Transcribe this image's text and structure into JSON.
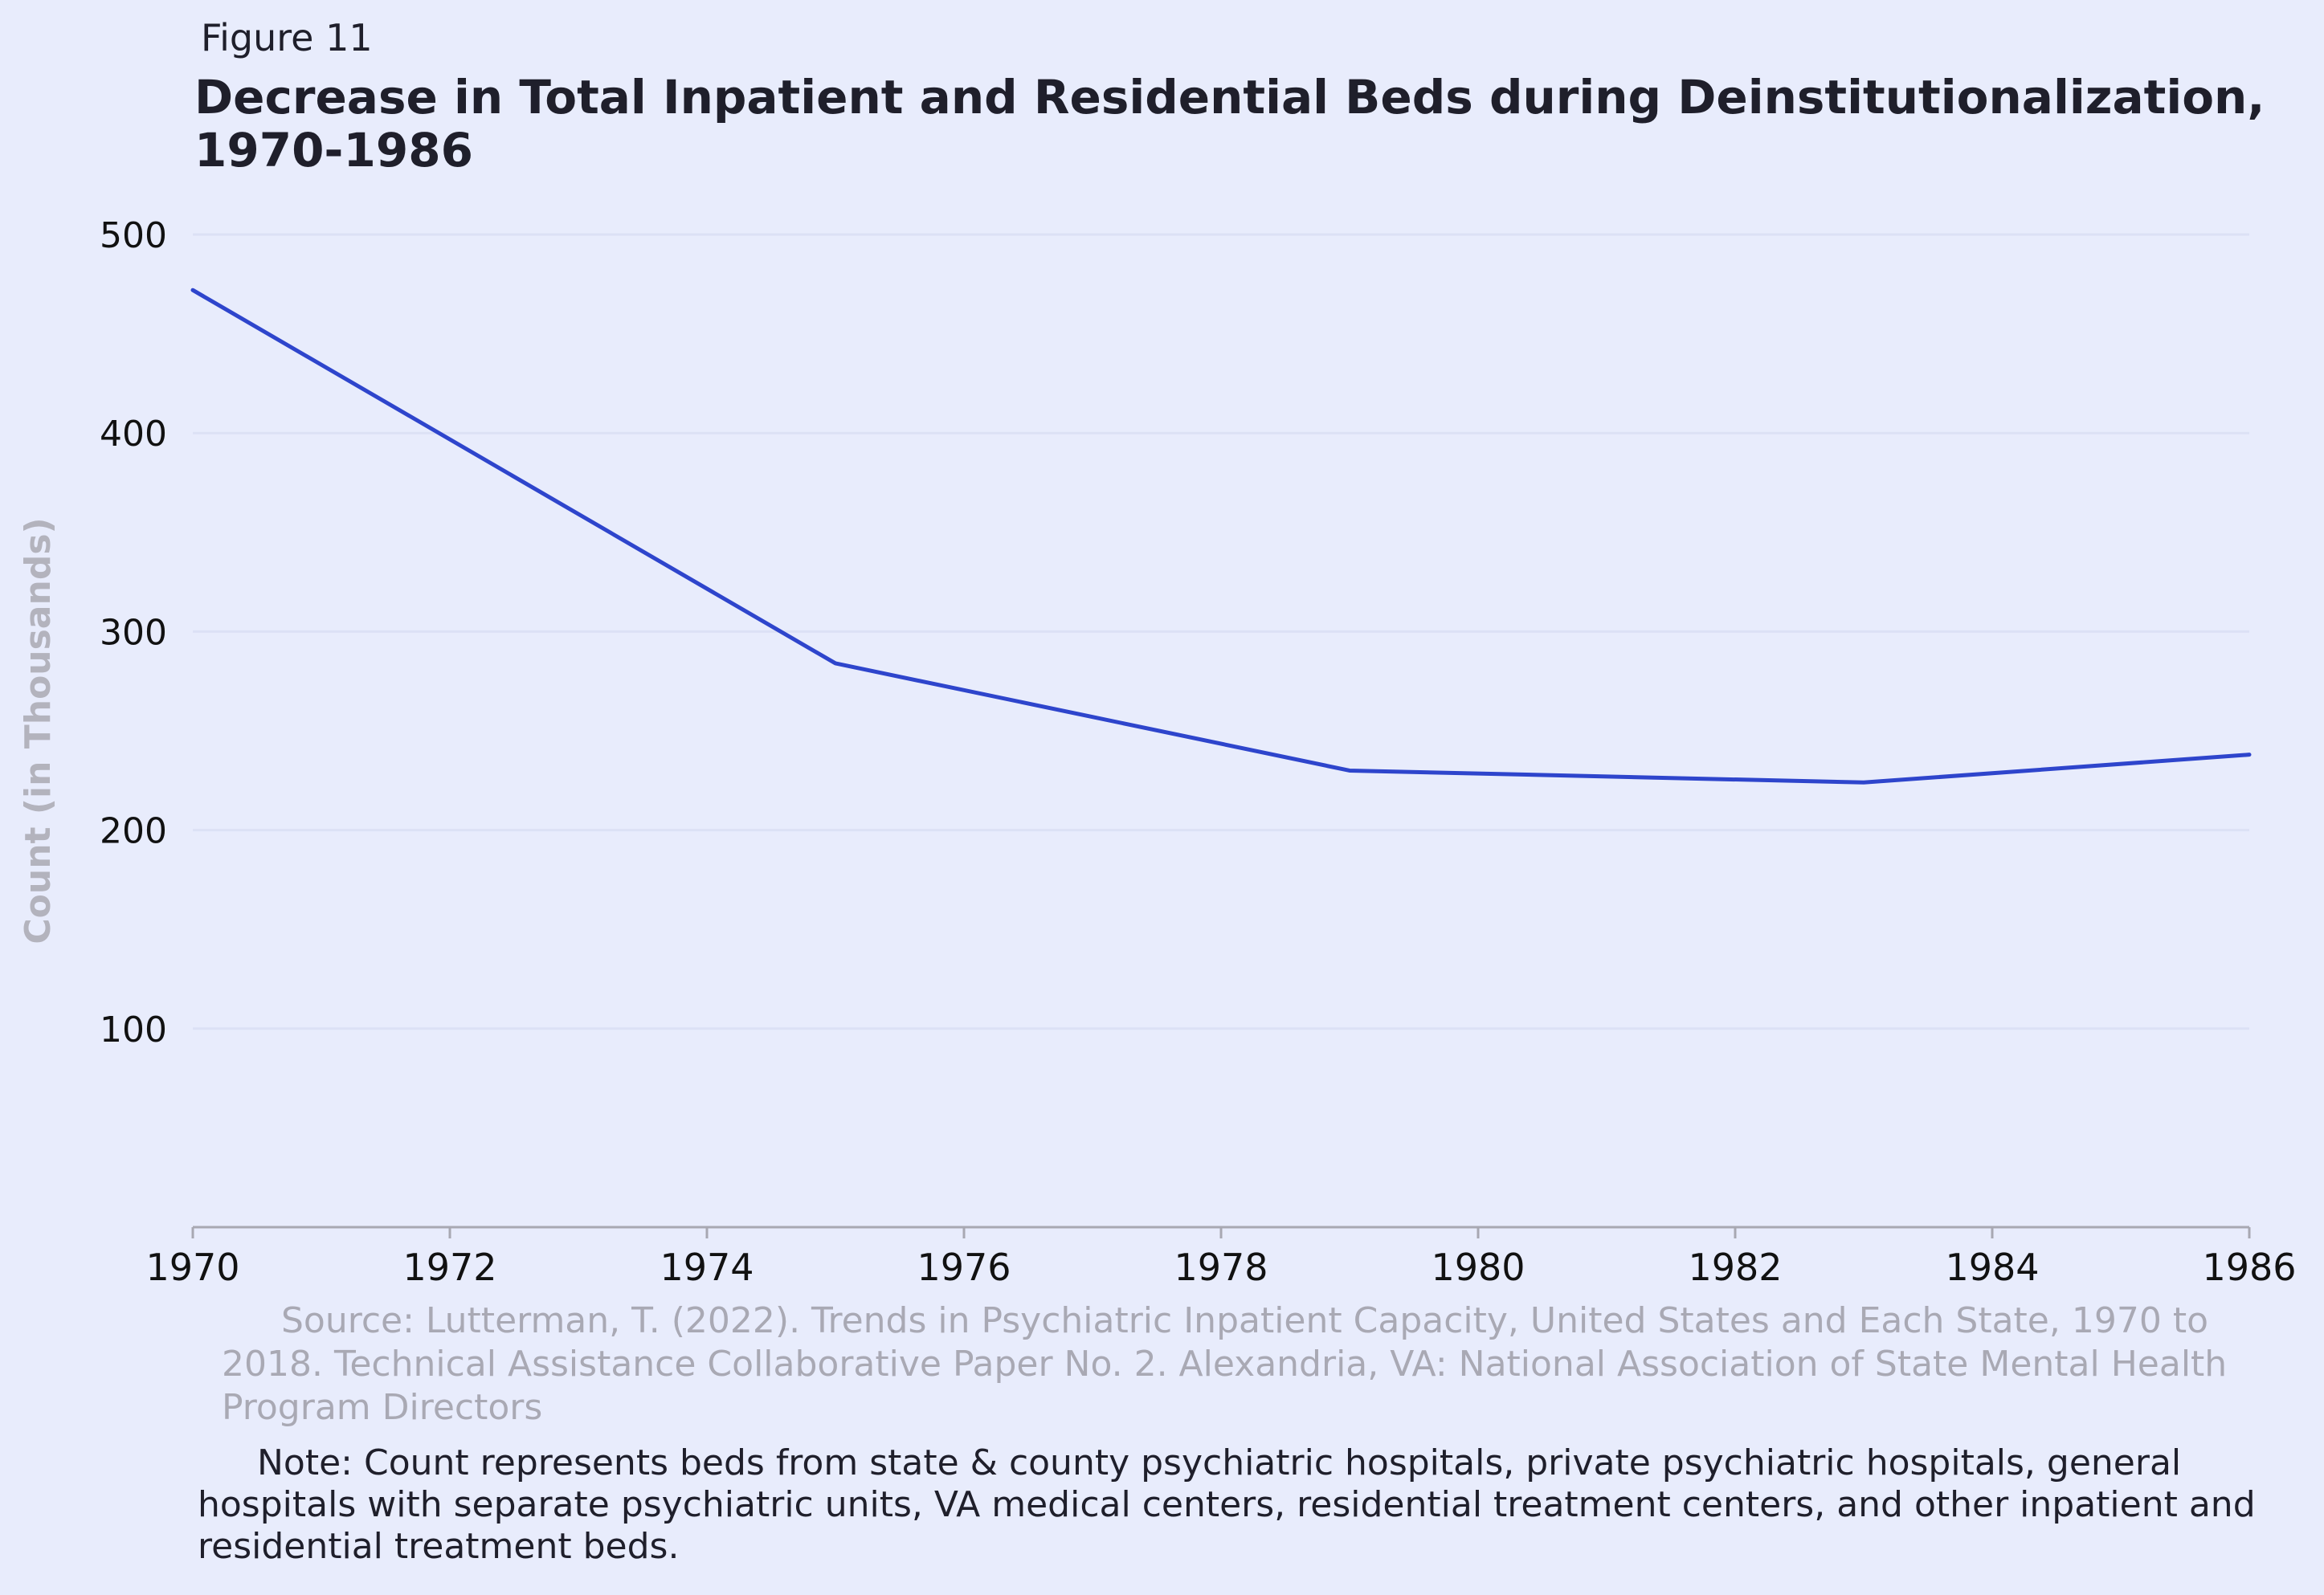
{
  "figure_label": "Figure 11",
  "chart_data": {
    "type": "line",
    "title": "Decrease in Total Inpatient and Residential Beds during Deinstitutionalization, 1970-1986",
    "xlabel": "",
    "ylabel": "Count (in Thousands)",
    "x": [
      1970,
      1975,
      1979,
      1983,
      1986
    ],
    "series": [
      {
        "values": [
          472,
          284,
          230,
          224,
          238
        ]
      }
    ],
    "xlim": [
      1970,
      1986
    ],
    "ylim": [
      0,
      500
    ],
    "x_ticks": [
      1970,
      1972,
      1974,
      1976,
      1978,
      1980,
      1982,
      1984,
      1986
    ],
    "x_tick_labels": [
      "1970",
      "1972",
      "1974",
      "1976",
      "1978",
      "1980",
      "1982",
      "1984",
      "1986"
    ],
    "y_ticks": [
      100,
      200,
      300,
      400,
      500
    ],
    "y_tick_labels": [
      "100",
      "200",
      "300",
      "400",
      "500"
    ],
    "grid": "horizontal",
    "legend": "none",
    "colors": {
      "line": "#2E45CC",
      "background": "#E8ECFC",
      "grid": "#DCE1F5",
      "axis": "#A8A8B2",
      "ylabel": "#B3B3BD"
    }
  },
  "source": "Source: Lutterman, T. (2022). Trends in Psychiatric Inpatient Capacity, United States and Each State, 1970 to 2018. Technical Assistance Collaborative Paper No. 2. Alexandria, VA: National Association of State Mental Health Program Directors",
  "note": "Note: Count represents beds from state & county psychiatric hospitals, private psychiatric hospitals, general hospitals with separate psychiatric units, VA medical centers, residential treatment centers, and other inpatient and residential treatment beds."
}
